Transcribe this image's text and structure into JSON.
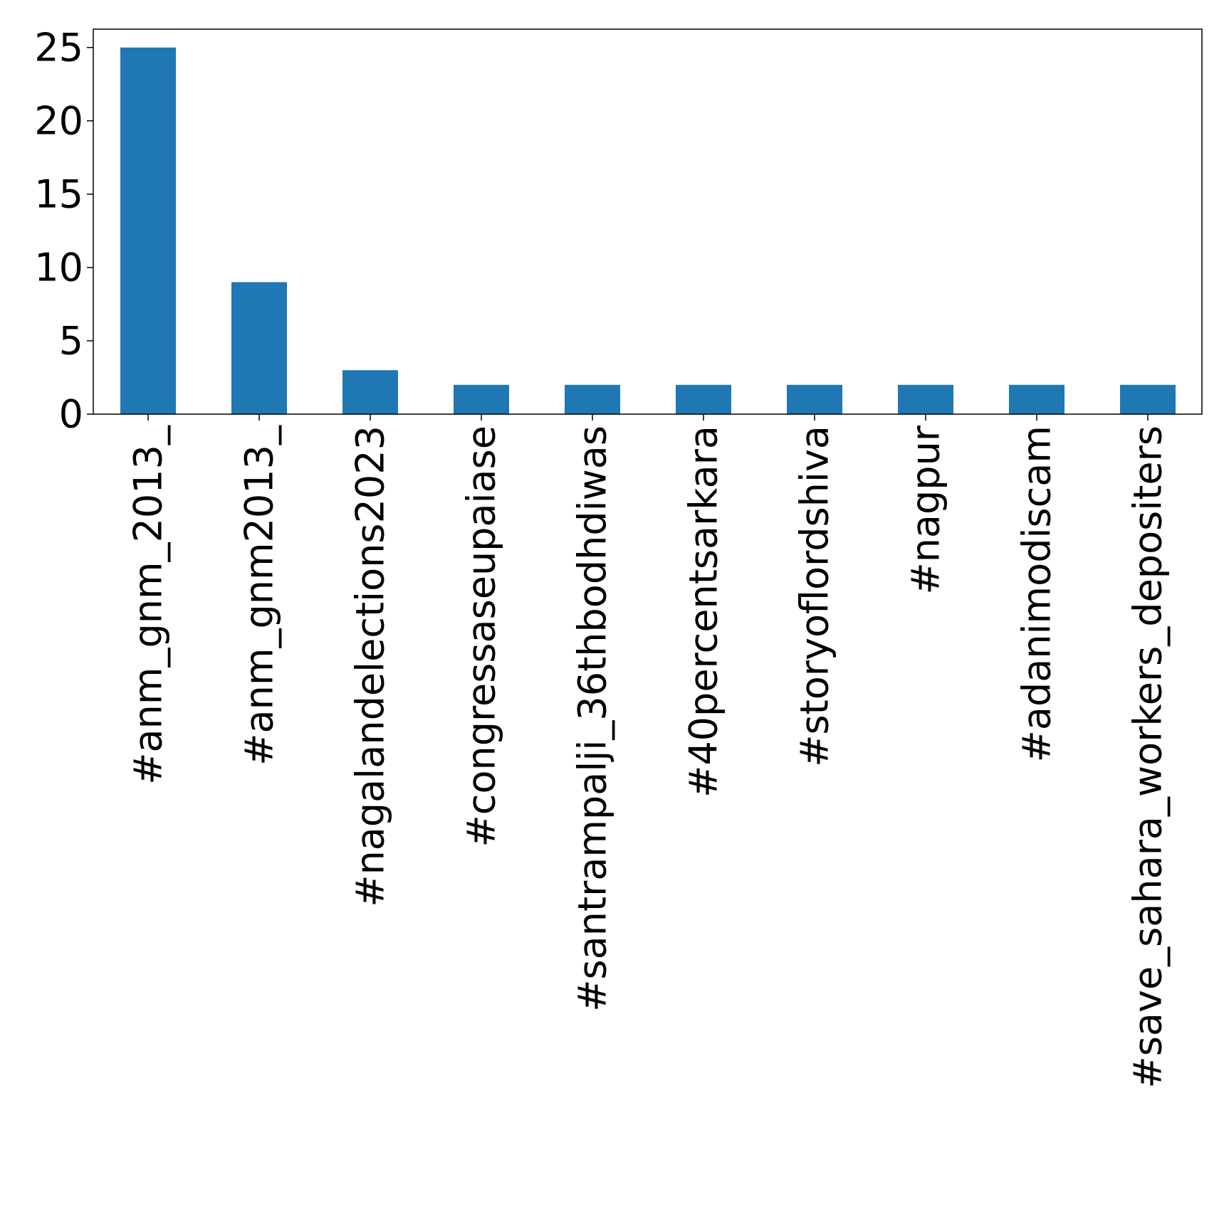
{
  "chart_data": {
    "type": "bar",
    "title": "",
    "xlabel": "",
    "ylabel": "",
    "categories": [
      "#anm_gnm_2013_",
      "#anm_gnm2013_",
      "#nagalandelections2023",
      "#congressaseupaiase",
      "#santrampalji_36thbodhdiwas",
      "#40percentsarkara",
      "#storyoflordshiva",
      "#nagpur",
      "#adanimodiscam",
      "#save_sahara_workers_depositers"
    ],
    "values": [
      25,
      9,
      3,
      2,
      2,
      2,
      2,
      2,
      2,
      2
    ],
    "yticks": [
      0,
      5,
      10,
      15,
      20,
      25
    ],
    "ylim": [
      0,
      26.25
    ],
    "grid": false,
    "legend": "none",
    "bar_color": "#1f77b4",
    "axis_color": "#000000",
    "background": "#ffffff"
  }
}
